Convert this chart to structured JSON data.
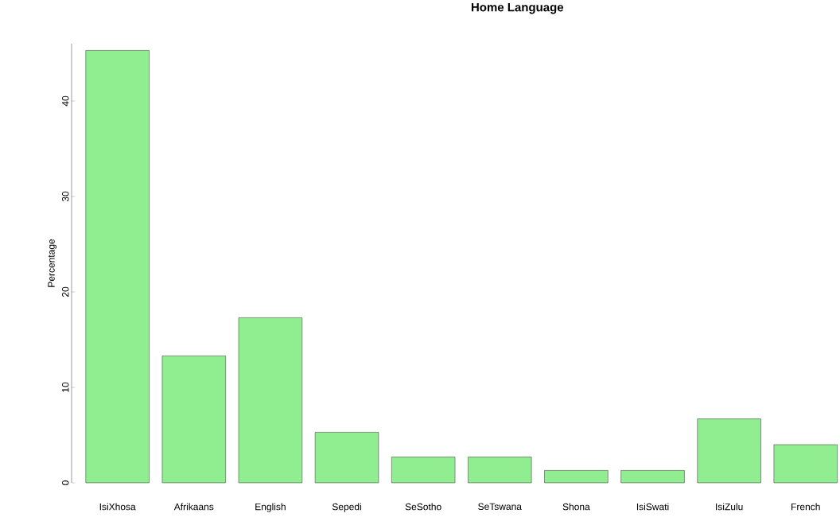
{
  "chart_data": {
    "type": "bar",
    "title": "Home Language",
    "ylabel": "Percentage",
    "categories": [
      "IsiXhosa",
      "Afrikaans",
      "English",
      "Sepedi",
      "SeSotho",
      "SeTswana",
      "Shona",
      "IsiSwati",
      "IsiZulu",
      "French"
    ],
    "values": [
      45.3,
      13.3,
      17.3,
      5.3,
      2.7,
      2.7,
      1.3,
      1.3,
      6.7,
      4.0
    ],
    "color": "#90ee90",
    "ylim": [
      0,
      46
    ],
    "yticks": [
      0,
      10,
      20,
      30,
      40
    ]
  }
}
